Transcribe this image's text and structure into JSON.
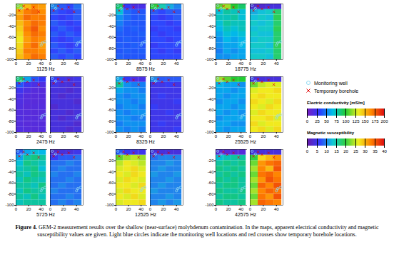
{
  "chart_data": {
    "type": "heatmap",
    "xlim": [
      0,
      50
    ],
    "ylim": [
      -100,
      0
    ],
    "xticks": [
      0,
      20,
      40
    ],
    "yticks": [
      -20,
      -40,
      -60,
      -80,
      -100
    ],
    "x_edges": [
      0,
      12,
      24,
      36,
      48
    ],
    "y_edges": [
      0,
      -10,
      -20,
      -30,
      -40,
      -50,
      -60,
      -70,
      -80,
      -90,
      -100
    ],
    "colorbars": {
      "conductivity": {
        "label": "Electric conductivity [mS/m]",
        "range": [
          0,
          200
        ],
        "ticks": [
          0,
          25,
          50,
          75,
          100,
          125,
          150,
          175,
          200
        ],
        "colors": [
          "#7a1fc0",
          "#2a3cff",
          "#00bfe8",
          "#22cc33",
          "#eeee22",
          "#ff8a00",
          "#e01010"
        ]
      },
      "susceptibility": {
        "label": "Magnetic susceptibility",
        "range": [
          0,
          40
        ],
        "ticks": [
          0,
          5,
          10,
          15,
          20,
          25,
          30,
          35,
          40
        ],
        "colors": [
          "#6a1aa8",
          "#3040ff",
          "#10c8d8",
          "#30d040",
          "#f0f020",
          "#ff8000",
          "#e01010"
        ]
      }
    },
    "markers": [
      {
        "name": "Monitoring well",
        "color": "#8fd9f2",
        "marker": "circle",
        "x": [
          3,
          8,
          42,
          46,
          40
        ],
        "y": [
          -3,
          -8,
          -70,
          -68,
          -74
        ]
      },
      {
        "name": "Temporary borehole",
        "color": "#e00000",
        "marker": "cross",
        "x": [
          5,
          12,
          18,
          28,
          36
        ],
        "y": [
          -12,
          -4,
          -9,
          -6,
          -14
        ]
      }
    ],
    "panels": [
      {
        "frequency": "1125 Hz",
        "conductivity": [
          [
            120,
            150,
            165,
            160
          ],
          [
            155,
            170,
            175,
            165
          ],
          [
            160,
            175,
            170,
            170
          ],
          [
            150,
            165,
            175,
            170
          ],
          [
            145,
            170,
            180,
            165
          ],
          [
            140,
            165,
            175,
            170
          ],
          [
            135,
            160,
            170,
            165
          ],
          [
            140,
            165,
            175,
            160
          ],
          [
            145,
            170,
            170,
            165
          ],
          [
            150,
            165,
            175,
            170
          ]
        ],
        "susceptibility": [
          [
            10,
            8,
            7,
            9
          ],
          [
            8,
            7,
            6,
            8
          ],
          [
            7,
            6,
            7,
            8
          ],
          [
            8,
            7,
            6,
            7
          ],
          [
            7,
            8,
            7,
            6
          ],
          [
            8,
            7,
            8,
            7
          ],
          [
            7,
            6,
            7,
            8
          ],
          [
            8,
            7,
            6,
            7
          ],
          [
            7,
            8,
            7,
            8
          ],
          [
            8,
            7,
            8,
            7
          ]
        ]
      },
      {
        "frequency": "2475 Hz",
        "conductivity": [
          [
            90,
            60,
            40,
            30
          ],
          [
            40,
            25,
            20,
            18
          ],
          [
            25,
            18,
            15,
            15
          ],
          [
            20,
            15,
            14,
            15
          ],
          [
            18,
            15,
            14,
            15
          ],
          [
            17,
            14,
            15,
            16
          ],
          [
            16,
            15,
            14,
            15
          ],
          [
            17,
            15,
            15,
            16
          ],
          [
            16,
            14,
            15,
            15
          ],
          [
            17,
            15,
            14,
            16
          ]
        ],
        "susceptibility": [
          [
            6,
            5,
            4,
            5
          ],
          [
            5,
            4,
            4,
            4
          ],
          [
            4,
            4,
            3,
            4
          ],
          [
            4,
            3,
            4,
            4
          ],
          [
            4,
            4,
            4,
            3
          ],
          [
            3,
            4,
            4,
            4
          ],
          [
            4,
            4,
            3,
            4
          ],
          [
            4,
            3,
            4,
            4
          ],
          [
            4,
            4,
            4,
            3
          ],
          [
            4,
            4,
            3,
            4
          ]
        ]
      },
      {
        "frequency": "5725 Hz",
        "conductivity": [
          [
            40,
            60,
            70,
            65
          ],
          [
            60,
            80,
            85,
            80
          ],
          [
            70,
            85,
            80,
            75
          ],
          [
            75,
            80,
            85,
            70
          ],
          [
            80,
            75,
            85,
            80
          ],
          [
            75,
            85,
            80,
            75
          ],
          [
            80,
            80,
            75,
            85
          ],
          [
            75,
            85,
            80,
            80
          ],
          [
            80,
            75,
            85,
            75
          ],
          [
            75,
            80,
            80,
            80
          ]
        ],
        "susceptibility": [
          [
            3,
            4,
            4,
            5
          ],
          [
            6,
            8,
            8,
            9
          ],
          [
            9,
            9,
            10,
            9
          ],
          [
            9,
            10,
            9,
            9
          ],
          [
            10,
            9,
            9,
            10
          ],
          [
            9,
            9,
            10,
            9
          ],
          [
            9,
            10,
            9,
            9
          ],
          [
            10,
            9,
            9,
            9
          ],
          [
            9,
            9,
            10,
            9
          ],
          [
            9,
            10,
            9,
            10
          ]
        ]
      },
      {
        "frequency": "8575 Hz",
        "conductivity": [
          [
            90,
            30,
            20,
            20
          ],
          [
            70,
            45,
            40,
            40
          ],
          [
            55,
            45,
            40,
            42
          ],
          [
            50,
            42,
            40,
            40
          ],
          [
            45,
            40,
            42,
            40
          ],
          [
            42,
            40,
            40,
            42
          ],
          [
            40,
            42,
            40,
            40
          ],
          [
            42,
            40,
            42,
            40
          ],
          [
            40,
            42,
            40,
            42
          ],
          [
            42,
            40,
            40,
            40
          ]
        ],
        "susceptibility": [
          [
            20,
            15,
            12,
            10
          ],
          [
            8,
            7,
            8,
            8
          ],
          [
            7,
            6,
            7,
            8
          ],
          [
            7,
            7,
            6,
            7
          ],
          [
            6,
            7,
            7,
            6
          ],
          [
            7,
            6,
            7,
            7
          ],
          [
            7,
            7,
            6,
            7
          ],
          [
            6,
            7,
            7,
            7
          ],
          [
            7,
            6,
            7,
            6
          ],
          [
            7,
            7,
            7,
            7
          ]
        ]
      },
      {
        "frequency": "8325 Hz",
        "conductivity": [
          [
            60,
            30,
            20,
            20
          ],
          [
            80,
            55,
            50,
            50
          ],
          [
            60,
            55,
            55,
            50
          ],
          [
            55,
            50,
            55,
            55
          ],
          [
            55,
            55,
            50,
            55
          ],
          [
            50,
            55,
            55,
            50
          ],
          [
            55,
            50,
            55,
            55
          ],
          [
            55,
            55,
            50,
            50
          ],
          [
            50,
            55,
            55,
            55
          ],
          [
            55,
            50,
            55,
            50
          ]
        ],
        "susceptibility": [
          [
            10,
            8,
            8,
            8
          ],
          [
            5,
            5,
            6,
            5
          ],
          [
            5,
            5,
            5,
            5
          ],
          [
            5,
            6,
            5,
            5
          ],
          [
            5,
            5,
            5,
            6
          ],
          [
            6,
            5,
            5,
            5
          ],
          [
            5,
            5,
            6,
            5
          ],
          [
            5,
            5,
            5,
            5
          ],
          [
            5,
            6,
            5,
            5
          ],
          [
            5,
            5,
            5,
            6
          ]
        ]
      },
      {
        "frequency": "12525 Hz",
        "conductivity": [
          [
            40,
            30,
            25,
            25
          ],
          [
            110,
            120,
            125,
            120
          ],
          [
            125,
            135,
            130,
            125
          ],
          [
            130,
            135,
            140,
            130
          ],
          [
            135,
            130,
            140,
            135
          ],
          [
            130,
            140,
            135,
            130
          ],
          [
            135,
            135,
            130,
            140
          ],
          [
            130,
            140,
            135,
            135
          ],
          [
            135,
            130,
            140,
            130
          ],
          [
            130,
            135,
            135,
            140
          ]
        ],
        "susceptibility": [
          [
            4,
            4,
            4,
            4
          ],
          [
            9,
            10,
            10,
            10
          ],
          [
            10,
            10,
            11,
            10
          ],
          [
            10,
            11,
            10,
            10
          ],
          [
            11,
            10,
            10,
            11
          ],
          [
            10,
            10,
            11,
            10
          ],
          [
            10,
            11,
            10,
            10
          ],
          [
            11,
            10,
            10,
            10
          ],
          [
            10,
            10,
            11,
            10
          ],
          [
            10,
            11,
            10,
            11
          ]
        ]
      },
      {
        "frequency": "18775 Hz",
        "conductivity": [
          [
            110,
            120,
            100,
            90
          ],
          [
            70,
            80,
            75,
            70
          ],
          [
            75,
            75,
            80,
            70
          ],
          [
            70,
            80,
            75,
            75
          ],
          [
            65,
            75,
            70,
            75
          ],
          [
            60,
            70,
            65,
            70
          ],
          [
            55,
            65,
            60,
            65
          ],
          [
            55,
            60,
            60,
            65
          ],
          [
            50,
            60,
            55,
            60
          ],
          [
            55,
            55,
            60,
            60
          ]
        ],
        "susceptibility": [
          [
            3,
            3,
            4,
            4
          ],
          [
            12,
            13,
            14,
            18
          ],
          [
            13,
            14,
            13,
            19
          ],
          [
            14,
            13,
            14,
            18
          ],
          [
            13,
            14,
            14,
            19
          ],
          [
            14,
            13,
            13,
            18
          ],
          [
            13,
            14,
            14,
            18
          ],
          [
            14,
            14,
            13,
            19
          ],
          [
            13,
            13,
            14,
            18
          ],
          [
            14,
            14,
            13,
            18
          ]
        ]
      },
      {
        "frequency": "25525 Hz",
        "conductivity": [
          [
            120,
            110,
            100,
            100
          ],
          [
            65,
            60,
            60,
            55
          ],
          [
            60,
            60,
            55,
            60
          ],
          [
            60,
            55,
            60,
            60
          ],
          [
            55,
            60,
            60,
            55
          ],
          [
            60,
            60,
            55,
            60
          ],
          [
            60,
            55,
            60,
            55
          ],
          [
            55,
            60,
            60,
            60
          ],
          [
            60,
            60,
            55,
            55
          ],
          [
            60,
            55,
            60,
            60
          ]
        ],
        "susceptibility": [
          [
            4,
            4,
            4,
            4
          ],
          [
            22,
            25,
            26,
            26
          ],
          [
            26,
            27,
            27,
            28
          ],
          [
            27,
            28,
            27,
            27
          ],
          [
            28,
            27,
            26,
            28
          ],
          [
            27,
            26,
            28,
            27
          ],
          [
            26,
            28,
            27,
            27
          ],
          [
            27,
            27,
            28,
            26
          ],
          [
            28,
            26,
            27,
            27
          ],
          [
            27,
            28,
            26,
            28
          ]
        ]
      },
      {
        "frequency": "42575 Hz",
        "conductivity": [
          [
            15,
            15,
            15,
            15
          ],
          [
            70,
            75,
            80,
            80
          ],
          [
            80,
            85,
            80,
            85
          ],
          [
            85,
            80,
            85,
            80
          ],
          [
            80,
            85,
            80,
            85
          ],
          [
            85,
            80,
            85,
            80
          ],
          [
            80,
            85,
            85,
            80
          ],
          [
            85,
            80,
            80,
            85
          ],
          [
            80,
            85,
            85,
            80
          ],
          [
            85,
            80,
            80,
            85
          ]
        ],
        "susceptibility": [
          [
            4,
            4,
            4,
            4
          ],
          [
            20,
            28,
            30,
            32
          ],
          [
            22,
            32,
            34,
            35
          ],
          [
            24,
            33,
            30,
            36
          ],
          [
            22,
            34,
            35,
            33
          ],
          [
            24,
            32,
            36,
            34
          ],
          [
            22,
            35,
            33,
            36
          ],
          [
            24,
            33,
            35,
            34
          ],
          [
            22,
            34,
            32,
            36
          ],
          [
            24,
            35,
            34,
            33
          ]
        ]
      }
    ],
    "caption": {
      "label": "Figure 4.",
      "text": "GEM-2 measurement results over the shallow (near-surface) molybdenum contamination. In the maps, apparent electrical conductivity and magnetic susceptibility values are given. Light blue circles indicate the monitoring well locations and red crosses show temporary borehole locations."
    }
  }
}
